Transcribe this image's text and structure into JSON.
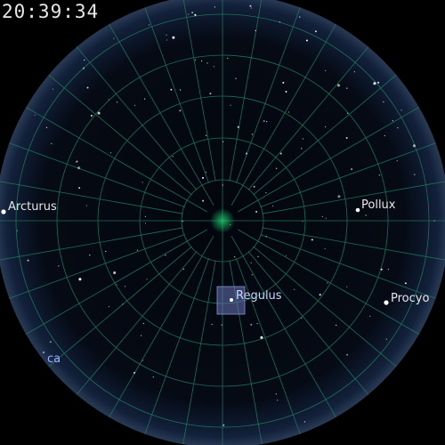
{
  "clock": {
    "time": "20:39:34"
  },
  "colors": {
    "background": "#000000",
    "sky_disc": "#03060d",
    "horizon_glow": "#2a3a55",
    "grid_line": "#1f7a5e",
    "zenith": "#1ebf6a",
    "label": "#e6e6e6",
    "label_selected": "#c9d6ff",
    "selection_box": "#6a74b8"
  },
  "stars": {
    "arcturus": {
      "label": "Arcturus",
      "selected": false
    },
    "pollux": {
      "label": "Pollux",
      "selected": false
    },
    "regulus": {
      "label": "Regulus",
      "selected": true
    },
    "procyon": {
      "label": "Procyo",
      "selected": false
    },
    "partial": {
      "label": "ca",
      "selected": false
    }
  }
}
